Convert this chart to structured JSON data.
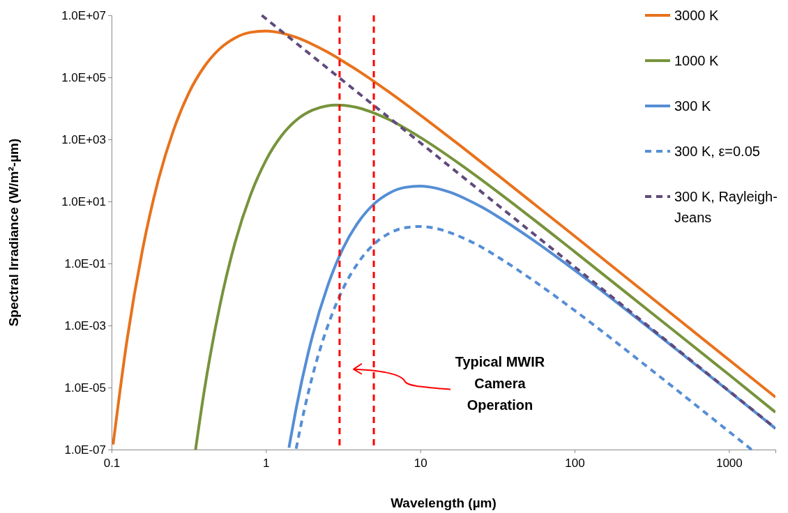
{
  "chart_data": {
    "type": "line",
    "xlabel": "Wavelength (µm)",
    "ylabel": "Spectral Irradiance (W/m²-µm)",
    "log": "xy",
    "grid": false,
    "legend": "top right",
    "xlim": [
      0.1,
      2000
    ],
    "ylim": [
      1e-07,
      10000000.0
    ],
    "xticks": [
      0.1,
      1,
      10,
      100,
      1000
    ],
    "yticks": [
      {
        "value": 1e-07,
        "label": "1.0E-07"
      },
      {
        "value": 1e-05,
        "label": "1.0E-05"
      },
      {
        "value": 0.001,
        "label": "1.0E-03"
      },
      {
        "value": 0.1,
        "label": "1.0E-01"
      },
      {
        "value": 10,
        "label": "1.0E+01"
      },
      {
        "value": 1000,
        "label": "1.0E+03"
      },
      {
        "value": 100000,
        "label": "1.0E+05"
      },
      {
        "value": 10000000.0,
        "label": "1.0E+07"
      }
    ],
    "series": [
      {
        "name": "3000 K",
        "color": "#e8721c",
        "line_style": "solid",
        "x": [
          0.1023,
          0.1259,
          0.1585,
          0.1995,
          0.2512,
          0.3162,
          0.3981,
          0.5012,
          0.631,
          0.7943,
          1,
          1.259,
          1.585,
          1.995,
          2.512,
          3.162,
          3.981,
          5.012,
          6.31,
          10,
          17.78,
          31.62,
          100,
          316.2,
          1000,
          2000
        ],
        "values": [
          1.45e-07,
          0.00034,
          0.27,
          43,
          1900,
          31000,
          220000,
          830000,
          1870000,
          2830000,
          3120000,
          2690000,
          1910000,
          1170000,
          650000,
          330000,
          160000,
          74000,
          33000,
          6100,
          680,
          72,
          0.76,
          0.0077,
          7.8e-05,
          4.9e-06
        ]
      },
      {
        "name": "1000 K",
        "color": "#77933c",
        "line_style": "solid",
        "x": [
          0.35,
          0.3981,
          0.5012,
          0.631,
          0.7943,
          1,
          1.259,
          1.585,
          1.995,
          2.512,
          2.818,
          3.162,
          3.981,
          5.012,
          6.31,
          10,
          17.78,
          31.62,
          100,
          316.2,
          1000,
          2000
        ],
        "values": [
          1e-07,
          7.6e-06,
          0.004,
          0.47,
          16,
          211,
          1290,
          4300,
          8700,
          12200,
          12800,
          12600,
          10400,
          7100,
          4300,
          1160,
          169,
          20.6,
          0.24,
          0.0025,
          2.6e-05,
          1.6e-06
        ]
      },
      {
        "name": "300 K",
        "color": "#558ed5",
        "line_style": "solid",
        "x": [
          1.41,
          1.585,
          1.995,
          2.512,
          3.162,
          3.981,
          5.012,
          6.31,
          7.943,
          10,
          12.59,
          15.85,
          19.95,
          25.12,
          31.62,
          56.23,
          100,
          316.2,
          1000,
          2000
        ],
        "values": [
          1.15e-07,
          2.7e-06,
          0.00043,
          0.019,
          0.31,
          2.2,
          8.3,
          18.7,
          28.3,
          31.2,
          26.9,
          19.1,
          11.7,
          6.5,
          3.3,
          0.49,
          0.061,
          0.00072,
          7.6e-06,
          4.8e-07
        ]
      },
      {
        "name": "300 K, ε=0.05",
        "color": "#558ed5",
        "line_style": "dashed",
        "x": [
          1.57,
          1.585,
          1.995,
          2.512,
          3.162,
          3.981,
          5.012,
          6.31,
          7.943,
          10,
          12.59,
          15.85,
          19.95,
          25.12,
          31.62,
          56.23,
          100,
          316.2,
          1000,
          1400
        ],
        "values": [
          1.06e-07,
          1.35e-07,
          2.2e-05,
          0.00095,
          0.0155,
          0.11,
          0.42,
          0.94,
          1.42,
          1.56,
          1.35,
          0.96,
          0.59,
          0.33,
          0.165,
          0.0245,
          0.00305,
          3.6e-05,
          3.8e-07,
          1e-07
        ]
      },
      {
        "name": "300 K, Rayleigh-Jeans",
        "color": "#604a7b",
        "line_style": "dashed",
        "x": [
          0.94,
          1,
          10,
          100,
          1000,
          2000
        ],
        "values": [
          10000000.0,
          7800000.0,
          780,
          0.078,
          7.8e-06,
          4.9e-07
        ]
      }
    ],
    "ref_lines": [
      {
        "axis": "x",
        "value": 3,
        "color": "#ff0000",
        "line_style": "dashed"
      },
      {
        "axis": "x",
        "value": 5,
        "color": "#ff0000",
        "line_style": "dashed"
      }
    ],
    "annotations": [
      "Typical MWIR Camera Operation"
    ]
  }
}
